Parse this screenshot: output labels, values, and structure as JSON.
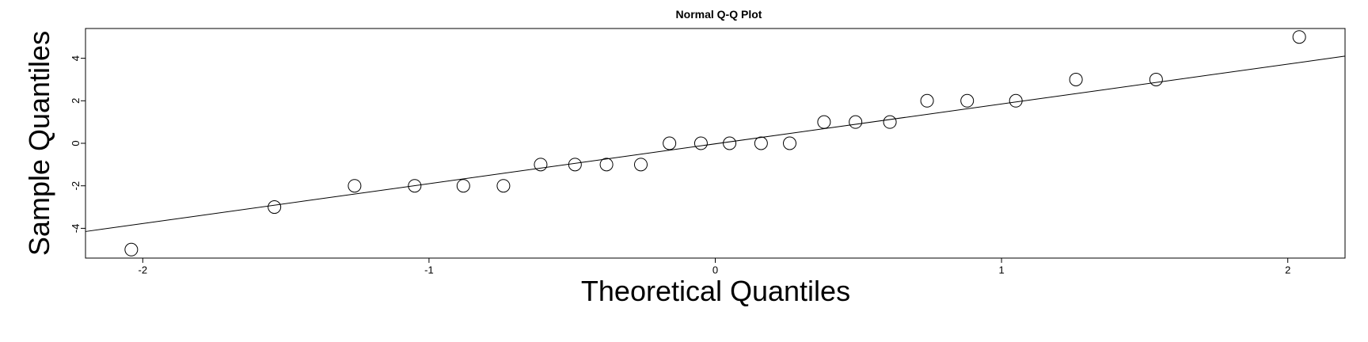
{
  "chart_data": {
    "type": "scatter",
    "title": "Normal Q-Q Plot",
    "xlabel": "Theoretical Quantiles",
    "ylabel": "Sample Quantiles",
    "xlim": [
      -2.2,
      2.2
    ],
    "ylim": [
      -5.4,
      5.4
    ],
    "x_ticks": [
      -2,
      -1,
      0,
      1,
      2
    ],
    "y_ticks": [
      -4,
      -2,
      0,
      2,
      4
    ],
    "x_tick_labels": [
      "-2",
      "-1",
      "0",
      "1",
      "2"
    ],
    "y_tick_labels": [
      "-4",
      "-2",
      "0",
      "2",
      "4"
    ],
    "grid": false,
    "point_style": "open-circle",
    "points": [
      {
        "x": -2.04,
        "y": -5
      },
      {
        "x": -1.54,
        "y": -3
      },
      {
        "x": -1.26,
        "y": -2
      },
      {
        "x": -1.05,
        "y": -2
      },
      {
        "x": -0.88,
        "y": -2
      },
      {
        "x": -0.74,
        "y": -2
      },
      {
        "x": -0.61,
        "y": -1
      },
      {
        "x": -0.49,
        "y": -1
      },
      {
        "x": -0.38,
        "y": -1
      },
      {
        "x": -0.26,
        "y": -1
      },
      {
        "x": -0.16,
        "y": 0
      },
      {
        "x": -0.05,
        "y": 0
      },
      {
        "x": 0.05,
        "y": 0
      },
      {
        "x": 0.16,
        "y": 0
      },
      {
        "x": 0.26,
        "y": 0
      },
      {
        "x": 0.38,
        "y": 1
      },
      {
        "x": 0.49,
        "y": 1
      },
      {
        "x": 0.61,
        "y": 1
      },
      {
        "x": 0.74,
        "y": 2
      },
      {
        "x": 0.88,
        "y": 2
      },
      {
        "x": 1.05,
        "y": 2
      },
      {
        "x": 1.26,
        "y": 3
      },
      {
        "x": 1.54,
        "y": 3
      },
      {
        "x": 2.04,
        "y": 5
      }
    ],
    "reference_line": {
      "x": [
        -2.2,
        2.2
      ],
      "y": [
        -4.15,
        4.1
      ]
    }
  }
}
